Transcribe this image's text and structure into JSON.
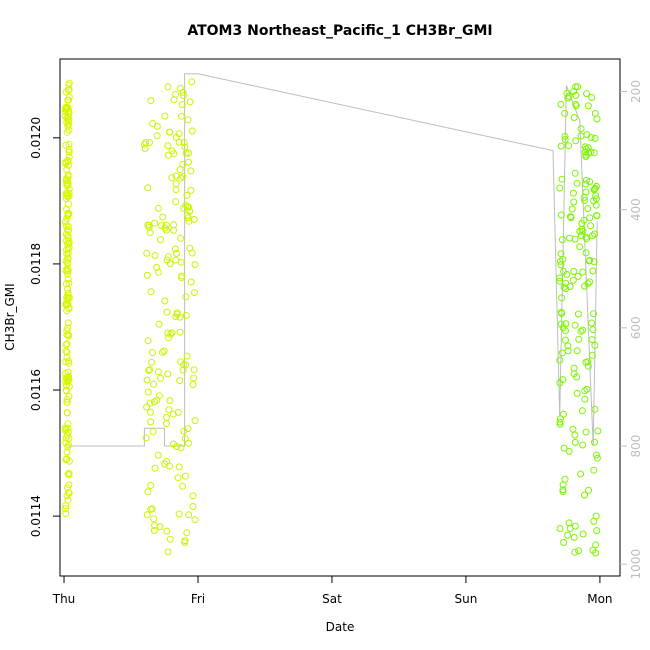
{
  "chart_data": {
    "type": "scatter",
    "title": "ATOM3 Northeast_Pacific_1 CH3Br_GMI",
    "xlabel": "Date",
    "ylabel": "CH3Br_GMI",
    "x_ticks": [
      "Thu",
      "Fri",
      "Sat",
      "Sun",
      "Mon"
    ],
    "x_tick_values": [
      0,
      1,
      2,
      3,
      4
    ],
    "xlim": [
      -0.03,
      4.15
    ],
    "y_ticks": [
      "0.0114",
      "0.0116",
      "0.0118",
      "0.0120"
    ],
    "y_tick_values": [
      0.0114,
      0.0116,
      0.0118,
      0.012
    ],
    "ylim": [
      0.011305,
      0.012125
    ],
    "secondary_axis": {
      "side": "right",
      "reversed": true,
      "ticks": [
        "200",
        "400",
        "600",
        "800",
        "1000"
      ],
      "tick_values": [
        200,
        400,
        600,
        800,
        1000
      ],
      "ylim": [
        145,
        1020
      ]
    },
    "colors": {
      "marker_thu": "#d9f500",
      "marker_fri": "#c8f500",
      "marker_mon": "#7cf500",
      "pressure_line": "#bdbdbd",
      "axis": "#000000"
    },
    "series": [
      {
        "marker": "circle",
        "clusters": [
          {
            "x": [
              0.01,
              0.04
            ],
            "y": [
              0.0114,
              0.01209
            ],
            "color": "marker_thu"
          },
          {
            "x": [
              0.6,
              0.98
            ],
            "y": [
              0.01134,
              0.01209
            ],
            "color": "marker_fri"
          },
          {
            "x": [
              3.7,
              3.99
            ],
            "y": [
              0.01132,
              0.01209
            ],
            "color": "marker_mon"
          }
        ]
      }
    ],
    "pressure_trace": [
      [
        0.03,
        800
      ],
      [
        0.6,
        800
      ],
      [
        0.6,
        770
      ],
      [
        0.75,
        770
      ],
      [
        0.75,
        800
      ],
      [
        0.9,
        800
      ],
      [
        0.9,
        170
      ],
      [
        1.0,
        170
      ],
      [
        3.65,
        300
      ],
      [
        3.7,
        750
      ],
      [
        3.75,
        190
      ],
      [
        3.85,
        250
      ],
      [
        3.95,
        800
      ],
      [
        3.98,
        420
      ]
    ]
  }
}
